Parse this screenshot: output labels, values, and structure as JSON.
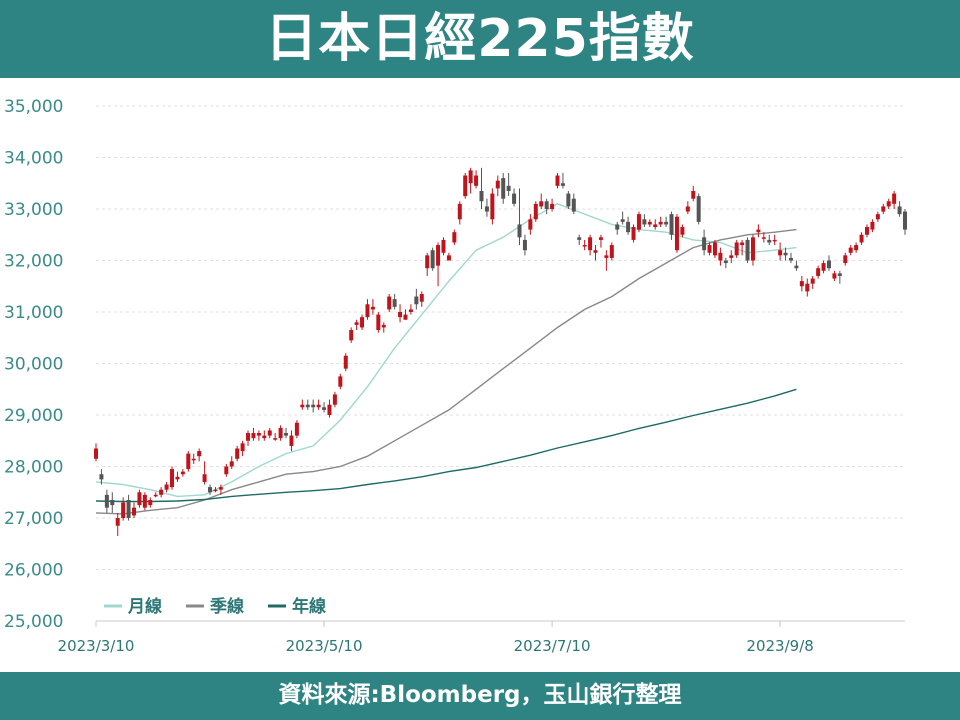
{
  "header": {
    "title": "日本日經225指數"
  },
  "footer": {
    "source": "資料來源:Bloomberg，玉山銀行整理"
  },
  "chart_data": {
    "type": "candlestick",
    "title": "日本日經225指數",
    "xlabel": "",
    "ylabel": "",
    "ylim": [
      25000,
      35000
    ],
    "yticks": [
      25000,
      26000,
      27000,
      28000,
      29000,
      30000,
      31000,
      32000,
      33000,
      34000,
      35000
    ],
    "ytick_labels": [
      "25,000",
      "26,000",
      "27,000",
      "28,000",
      "29,000",
      "30,000",
      "31,000",
      "32,000",
      "33,000",
      "34,000",
      "35,000"
    ],
    "xticks": [
      {
        "index": 0,
        "label": "2023/3/10"
      },
      {
        "index": 42,
        "label": "2023/5/10"
      },
      {
        "index": 84,
        "label": "2023/7/10"
      },
      {
        "index": 126,
        "label": "2023/9/8"
      }
    ],
    "grid": true,
    "legend_position": "bottom-left",
    "colors": {
      "up": "#c0141d",
      "down": "#555555",
      "ma_month": "#9ed8cf",
      "ma_quarter": "#888888",
      "ma_year": "#1d6b66"
    },
    "candles": [
      [
        28150,
        28450,
        28100,
        28350
      ],
      [
        27850,
        27950,
        27650,
        27750
      ],
      [
        27450,
        27550,
        27100,
        27200
      ],
      [
        27350,
        27500,
        27100,
        27250
      ],
      [
        26850,
        27100,
        26650,
        27000
      ],
      [
        27000,
        27400,
        26950,
        27300
      ],
      [
        27350,
        27450,
        26950,
        27000
      ],
      [
        27050,
        27300,
        27000,
        27200
      ],
      [
        27250,
        27550,
        27200,
        27500
      ],
      [
        27200,
        27500,
        27150,
        27450
      ],
      [
        27250,
        27400,
        27200,
        27350
      ],
      [
        27450,
        27500,
        27400,
        27450
      ],
      [
        27450,
        27600,
        27400,
        27550
      ],
      [
        27550,
        27700,
        27500,
        27650
      ],
      [
        27600,
        28000,
        27550,
        27950
      ],
      [
        27750,
        27900,
        27700,
        27800
      ],
      [
        27850,
        27950,
        27800,
        27900
      ],
      [
        27950,
        28300,
        27900,
        28250
      ],
      [
        28150,
        28250,
        28050,
        28150
      ],
      [
        28200,
        28350,
        28100,
        28300
      ],
      [
        27700,
        28100,
        27650,
        27850
      ],
      [
        27600,
        27650,
        27450,
        27500
      ],
      [
        27550,
        27600,
        27500,
        27550
      ],
      [
        27550,
        27650,
        27450,
        27600
      ],
      [
        27850,
        28050,
        27800,
        28000
      ],
      [
        28000,
        28200,
        27950,
        28100
      ],
      [
        28150,
        28400,
        28100,
        28350
      ],
      [
        28300,
        28500,
        28200,
        28450
      ],
      [
        28500,
        28700,
        28400,
        28650
      ],
      [
        28550,
        28750,
        28500,
        28650
      ],
      [
        28600,
        28700,
        28500,
        28650
      ],
      [
        28550,
        28700,
        28500,
        28600
      ],
      [
        28600,
        28750,
        28550,
        28700
      ],
      [
        28550,
        28650,
        28500,
        28550
      ],
      [
        28550,
        28800,
        28500,
        28750
      ],
      [
        28650,
        28750,
        28550,
        28600
      ],
      [
        28400,
        28700,
        28300,
        28600
      ],
      [
        28600,
        28900,
        28550,
        28850
      ],
      [
        29150,
        29300,
        29100,
        29200
      ],
      [
        29200,
        29300,
        29100,
        29150
      ],
      [
        29200,
        29300,
        29050,
        29150
      ],
      [
        29150,
        29300,
        29100,
        29200
      ],
      [
        29150,
        29250,
        29050,
        29100
      ],
      [
        29000,
        29300,
        28950,
        29200
      ],
      [
        29200,
        29450,
        29150,
        29400
      ],
      [
        29550,
        29800,
        29500,
        29750
      ],
      [
        29900,
        30200,
        29850,
        30150
      ],
      [
        30450,
        30700,
        30400,
        30650
      ],
      [
        30750,
        30850,
        30650,
        30800
      ],
      [
        30700,
        30950,
        30650,
        30900
      ],
      [
        30900,
        31250,
        30850,
        31150
      ],
      [
        31050,
        31250,
        30950,
        31100
      ],
      [
        30650,
        31000,
        30600,
        30950
      ],
      [
        30700,
        30800,
        30600,
        30750
      ],
      [
        31050,
        31350,
        31000,
        31300
      ],
      [
        31250,
        31350,
        31050,
        31100
      ],
      [
        30900,
        31150,
        30800,
        31000
      ],
      [
        30850,
        31050,
        30850,
        30950
      ],
      [
        31000,
        31150,
        30950,
        31050
      ],
      [
        31300,
        31450,
        31050,
        31150
      ],
      [
        31200,
        31400,
        31100,
        31350
      ],
      [
        31850,
        32150,
        31700,
        32100
      ],
      [
        32200,
        32250,
        31800,
        31850
      ],
      [
        31900,
        32350,
        31500,
        32300
      ],
      [
        32150,
        32450,
        32100,
        32400
      ],
      [
        32000,
        32150,
        32000,
        32100
      ],
      [
        32350,
        32600,
        32300,
        32550
      ],
      [
        32800,
        33150,
        32700,
        33100
      ],
      [
        33250,
        33700,
        33200,
        33650
      ],
      [
        33500,
        33800,
        33300,
        33750
      ],
      [
        33450,
        33750,
        33400,
        33650
      ],
      [
        33350,
        33800,
        33000,
        33150
      ],
      [
        33050,
        33200,
        32850,
        32950
      ],
      [
        32800,
        33400,
        32700,
        33300
      ],
      [
        33400,
        33650,
        33250,
        33550
      ],
      [
        33600,
        33700,
        33100,
        33200
      ],
      [
        33450,
        33700,
        33250,
        33350
      ],
      [
        33300,
        33400,
        33050,
        33100
      ],
      [
        32700,
        33400,
        32300,
        32450
      ],
      [
        32400,
        32500,
        32100,
        32200
      ],
      [
        32600,
        32900,
        32500,
        32800
      ],
      [
        32800,
        33150,
        32750,
        33100
      ],
      [
        33050,
        33300,
        33000,
        33150
      ],
      [
        33150,
        33200,
        32900,
        33000
      ],
      [
        33000,
        33200,
        32950,
        33100
      ],
      [
        33450,
        33700,
        33400,
        33650
      ],
      [
        33500,
        33700,
        33400,
        33450
      ],
      [
        33300,
        33350,
        33000,
        33050
      ],
      [
        33200,
        33300,
        32900,
        32950
      ],
      [
        32450,
        32500,
        32300,
        32400
      ],
      [
        32300,
        32400,
        32200,
        32300
      ],
      [
        32200,
        32500,
        32100,
        32450
      ],
      [
        32150,
        32300,
        32000,
        32200
      ],
      [
        32400,
        32500,
        32250,
        32450
      ],
      [
        32050,
        32200,
        31800,
        32100
      ],
      [
        32050,
        32350,
        32000,
        32300
      ],
      [
        32700,
        32750,
        32500,
        32600
      ],
      [
        32800,
        32950,
        32700,
        32750
      ],
      [
        32750,
        32850,
        32500,
        32550
      ],
      [
        32400,
        32700,
        32350,
        32650
      ],
      [
        32600,
        32950,
        32550,
        32900
      ],
      [
        32800,
        32900,
        32650,
        32700
      ],
      [
        32700,
        32800,
        32650,
        32750
      ],
      [
        32650,
        32800,
        32600,
        32700
      ],
      [
        32700,
        32850,
        32650,
        32750
      ],
      [
        32750,
        32850,
        32650,
        32700
      ],
      [
        32900,
        32950,
        32400,
        32500
      ],
      [
        32200,
        32900,
        32150,
        32850
      ],
      [
        32500,
        32700,
        32450,
        32650
      ],
      [
        32950,
        33150,
        32900,
        33050
      ],
      [
        33200,
        33450,
        33150,
        33350
      ],
      [
        33250,
        33300,
        32700,
        32750
      ],
      [
        32450,
        32600,
        32100,
        32200
      ],
      [
        32150,
        32350,
        32100,
        32300
      ],
      [
        32100,
        32400,
        32050,
        32350
      ],
      [
        32000,
        32250,
        31900,
        32150
      ],
      [
        32000,
        32050,
        31850,
        31950
      ],
      [
        32050,
        32200,
        31950,
        32100
      ],
      [
        32100,
        32400,
        32050,
        32350
      ],
      [
        32300,
        32400,
        32100,
        32350
      ],
      [
        32400,
        32450,
        31950,
        32000
      ],
      [
        32000,
        32500,
        31900,
        32450
      ],
      [
        32550,
        32700,
        32450,
        32600
      ],
      [
        32450,
        32550,
        32350,
        32450
      ],
      [
        32400,
        32500,
        32300,
        32350
      ],
      [
        32400,
        32500,
        32300,
        32400
      ],
      [
        32100,
        32350,
        32000,
        32200
      ],
      [
        32150,
        32250,
        32000,
        32100
      ],
      [
        32050,
        32150,
        31950,
        32000
      ],
      [
        31900,
        32000,
        31800,
        31850
      ],
      [
        31500,
        31700,
        31400,
        31600
      ],
      [
        31400,
        31650,
        31300,
        31550
      ],
      [
        31550,
        31700,
        31450,
        31650
      ],
      [
        31700,
        31900,
        31650,
        31850
      ],
      [
        31800,
        32000,
        31750,
        31950
      ],
      [
        32000,
        32100,
        31800,
        31850
      ],
      [
        31650,
        31800,
        31600,
        31750
      ],
      [
        31750,
        31800,
        31550,
        31700
      ],
      [
        31950,
        32150,
        31900,
        32100
      ],
      [
        32150,
        32300,
        32100,
        32250
      ],
      [
        32200,
        32350,
        32150,
        32300
      ],
      [
        32350,
        32550,
        32300,
        32500
      ],
      [
        32500,
        32700,
        32450,
        32650
      ],
      [
        32600,
        32800,
        32550,
        32750
      ],
      [
        32800,
        32950,
        32750,
        32900
      ],
      [
        32950,
        33100,
        32900,
        33050
      ],
      [
        33050,
        33200,
        33000,
        33150
      ],
      [
        33100,
        33350,
        33000,
        33300
      ],
      [
        33050,
        33150,
        32850,
        32900
      ],
      [
        32950,
        33000,
        32500,
        32600
      ]
    ],
    "series": [
      {
        "name": "月線",
        "color": "#9ed8cf",
        "x": [
          0,
          5,
          10,
          15,
          20,
          25,
          30,
          35,
          40,
          45,
          50,
          55,
          60,
          65,
          70,
          75,
          80,
          85,
          90,
          95,
          100,
          105,
          110,
          115,
          120,
          125,
          129
        ],
        "values": [
          27700,
          27650,
          27550,
          27420,
          27450,
          27700,
          28000,
          28250,
          28400,
          28900,
          29550,
          30300,
          30950,
          31600,
          32200,
          32450,
          32800,
          33100,
          32900,
          32700,
          32600,
          32550,
          32400,
          32350,
          32150,
          32200,
          32250
        ]
      },
      {
        "name": "季線",
        "color": "#888888",
        "x": [
          0,
          5,
          10,
          15,
          20,
          25,
          30,
          35,
          40,
          45,
          50,
          55,
          60,
          65,
          70,
          75,
          80,
          85,
          90,
          95,
          100,
          105,
          110,
          115,
          120,
          125,
          129
        ],
        "values": [
          27100,
          27080,
          27150,
          27200,
          27350,
          27550,
          27700,
          27850,
          27900,
          28000,
          28200,
          28500,
          28800,
          29100,
          29500,
          29900,
          30300,
          30700,
          31050,
          31300,
          31650,
          31950,
          32250,
          32400,
          32500,
          32550,
          32600
        ]
      },
      {
        "name": "年線",
        "color": "#1d6b66",
        "x": [
          0,
          5,
          10,
          15,
          20,
          25,
          30,
          35,
          40,
          45,
          50,
          55,
          60,
          65,
          70,
          75,
          80,
          85,
          90,
          95,
          100,
          105,
          110,
          115,
          120,
          125,
          129
        ],
        "values": [
          27330,
          27320,
          27320,
          27330,
          27360,
          27420,
          27460,
          27500,
          27530,
          27570,
          27650,
          27720,
          27800,
          27900,
          27980,
          28100,
          28220,
          28360,
          28480,
          28600,
          28740,
          28860,
          28990,
          29110,
          29230,
          29370,
          29500
        ]
      }
    ],
    "legend": [
      "月線",
      "季線",
      "年線"
    ]
  }
}
